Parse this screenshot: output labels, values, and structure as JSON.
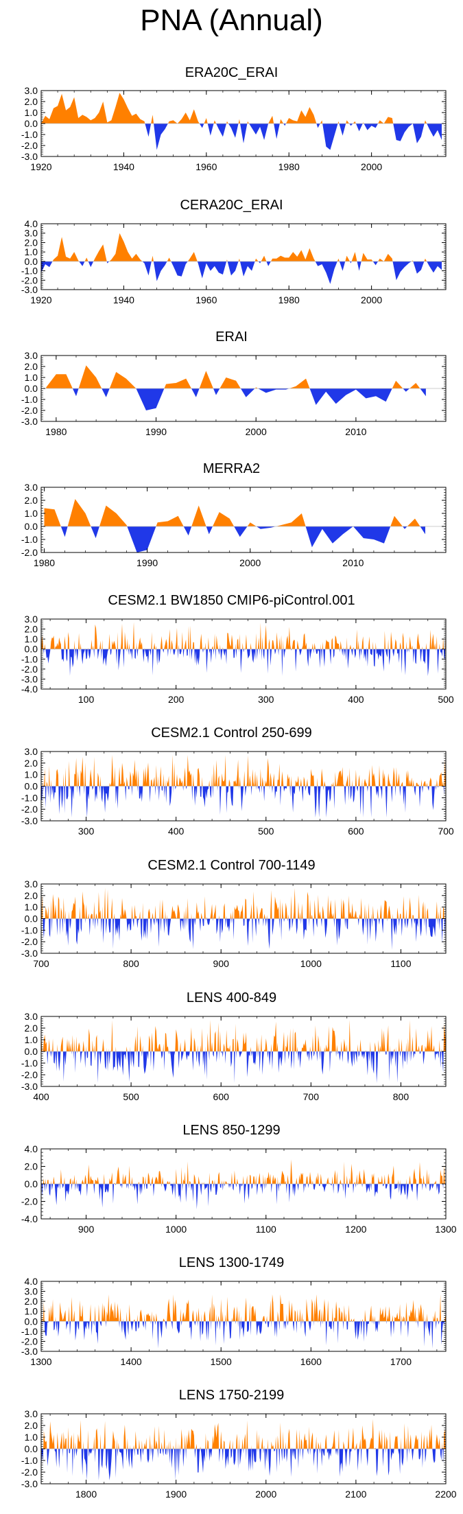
{
  "title": "PNA (Annual)",
  "colors": {
    "positive": "#ff8000",
    "negative": "#2038e8",
    "axis": "#000000"
  },
  "chart_data": [
    {
      "type": "area",
      "title": "ERA20C_ERAI",
      "xlim": [
        1920,
        2018
      ],
      "ylim": [
        -3.0,
        3.0
      ],
      "yticks": [
        "3.0",
        "2.0",
        "1.0",
        "0.0",
        "-1.0",
        "-2.0",
        "-3.0"
      ],
      "xticks": [
        "1920",
        "1940",
        "1960",
        "1980",
        "2000"
      ],
      "series_knots": [
        [
          1920,
          0.0
        ],
        [
          1921,
          0.7
        ],
        [
          1922,
          0.4
        ],
        [
          1923,
          1.4
        ],
        [
          1924,
          1.6
        ],
        [
          1925,
          2.7
        ],
        [
          1926,
          1.2
        ],
        [
          1927,
          1.5
        ],
        [
          1928,
          2.4
        ],
        [
          1929,
          0.5
        ],
        [
          1930,
          0.8
        ],
        [
          1931,
          0.6
        ],
        [
          1932,
          0.3
        ],
        [
          1933,
          0.5
        ],
        [
          1934,
          1.0
        ],
        [
          1935,
          2.0
        ],
        [
          1936,
          0.1
        ],
        [
          1937,
          0.3
        ],
        [
          1938,
          1.5
        ],
        [
          1939,
          2.8
        ],
        [
          1940,
          2.2
        ],
        [
          1941,
          1.4
        ],
        [
          1942,
          0.7
        ],
        [
          1943,
          0.9
        ],
        [
          1944,
          0.4
        ],
        [
          1945,
          0.2
        ],
        [
          1946,
          -1.2
        ],
        [
          1947,
          0.8
        ],
        [
          1948,
          -2.4
        ],
        [
          1949,
          -1.0
        ],
        [
          1950,
          -0.5
        ],
        [
          1951,
          0.2
        ],
        [
          1952,
          0.3
        ],
        [
          1953,
          0.0
        ],
        [
          1954,
          0.4
        ],
        [
          1955,
          1.0
        ],
        [
          1956,
          0.3
        ],
        [
          1957,
          1.3
        ],
        [
          1958,
          0.2
        ],
        [
          1959,
          -0.4
        ],
        [
          1960,
          0.5
        ],
        [
          1961,
          -1.1
        ],
        [
          1962,
          0.3
        ],
        [
          1963,
          -0.5
        ],
        [
          1964,
          -1.2
        ],
        [
          1965,
          0.2
        ],
        [
          1966,
          -0.4
        ],
        [
          1967,
          -1.3
        ],
        [
          1968,
          0.4
        ],
        [
          1969,
          -1.8
        ],
        [
          1970,
          0.2
        ],
        [
          1971,
          -0.4
        ],
        [
          1972,
          -1.0
        ],
        [
          1973,
          -0.3
        ],
        [
          1974,
          -1.5
        ],
        [
          1975,
          0.0
        ],
        [
          1976,
          0.7
        ],
        [
          1977,
          -1.4
        ],
        [
          1978,
          0.4
        ],
        [
          1979,
          -0.2
        ],
        [
          1980,
          0.5
        ],
        [
          1981,
          0.3
        ],
        [
          1982,
          0.2
        ],
        [
          1983,
          1.2
        ],
        [
          1984,
          0.6
        ],
        [
          1985,
          1.5
        ],
        [
          1986,
          0.8
        ],
        [
          1987,
          -0.4
        ],
        [
          1988,
          0.3
        ],
        [
          1989,
          -2.1
        ],
        [
          1990,
          -2.4
        ],
        [
          1991,
          -1.1
        ],
        [
          1992,
          0.2
        ],
        [
          1993,
          -1.1
        ],
        [
          1994,
          0.3
        ],
        [
          1995,
          -0.2
        ],
        [
          1996,
          0.2
        ],
        [
          1997,
          -0.7
        ],
        [
          1998,
          0.1
        ],
        [
          1999,
          -0.6
        ],
        [
          2000,
          -0.2
        ],
        [
          2001,
          -0.4
        ],
        [
          2002,
          0.3
        ],
        [
          2003,
          0.0
        ],
        [
          2004,
          0.6
        ],
        [
          2005,
          0.5
        ],
        [
          2006,
          -1.5
        ],
        [
          2007,
          -1.6
        ],
        [
          2008,
          -0.8
        ],
        [
          2009,
          -0.3
        ],
        [
          2010,
          0.0
        ],
        [
          2011,
          -1.8
        ],
        [
          2012,
          -1.2
        ],
        [
          2013,
          0.3
        ],
        [
          2014,
          -0.5
        ],
        [
          2015,
          -1.2
        ],
        [
          2016,
          -0.6
        ],
        [
          2017,
          -1.5
        ]
      ]
    },
    {
      "type": "area",
      "title": "CERA20C_ERAI",
      "xlim": [
        1920,
        2018
      ],
      "ylim": [
        -3.0,
        4.0
      ],
      "yticks": [
        "4.0",
        "3.0",
        "2.0",
        "1.0",
        "0.0",
        "-1.0",
        "-2.0",
        "-3.0"
      ],
      "xticks": [
        "1920",
        "1940",
        "1960",
        "1980",
        "2000"
      ],
      "series_knots": [
        [
          1920,
          -1.2
        ],
        [
          1921,
          -0.3
        ],
        [
          1922,
          -0.6
        ],
        [
          1923,
          0.2
        ],
        [
          1924,
          0.6
        ],
        [
          1925,
          2.6
        ],
        [
          1926,
          0.5
        ],
        [
          1927,
          0.3
        ],
        [
          1928,
          1.0
        ],
        [
          1929,
          0.1
        ],
        [
          1930,
          -0.5
        ],
        [
          1931,
          0.4
        ],
        [
          1932,
          -0.6
        ],
        [
          1933,
          0.3
        ],
        [
          1934,
          1.1
        ],
        [
          1935,
          1.8
        ],
        [
          1936,
          -0.2
        ],
        [
          1937,
          0.2
        ],
        [
          1938,
          0.8
        ],
        [
          1939,
          3.0
        ],
        [
          1940,
          2.1
        ],
        [
          1941,
          1.0
        ],
        [
          1942,
          0.3
        ],
        [
          1943,
          0.8
        ],
        [
          1944,
          0.2
        ],
        [
          1945,
          -0.2
        ],
        [
          1946,
          -1.5
        ],
        [
          1947,
          0.6
        ],
        [
          1948,
          -2.1
        ],
        [
          1949,
          -1.0
        ],
        [
          1950,
          -0.4
        ],
        [
          1951,
          0.4
        ],
        [
          1952,
          -0.5
        ],
        [
          1953,
          -1.5
        ],
        [
          1954,
          -1.6
        ],
        [
          1955,
          -0.3
        ],
        [
          1956,
          0.3
        ],
        [
          1957,
          1.0
        ],
        [
          1958,
          -0.2
        ],
        [
          1959,
          -1.8
        ],
        [
          1960,
          -0.2
        ],
        [
          1961,
          -1.0
        ],
        [
          1962,
          -0.5
        ],
        [
          1963,
          -1.2
        ],
        [
          1964,
          -1.4
        ],
        [
          1965,
          0.2
        ],
        [
          1966,
          -1.5
        ],
        [
          1967,
          -1.0
        ],
        [
          1968,
          0.3
        ],
        [
          1969,
          -1.6
        ],
        [
          1970,
          -0.5
        ],
        [
          1971,
          -1.0
        ],
        [
          1972,
          0.3
        ],
        [
          1973,
          -0.2
        ],
        [
          1974,
          0.6
        ],
        [
          1975,
          -0.5
        ],
        [
          1976,
          0.3
        ],
        [
          1977,
          0.3
        ],
        [
          1978,
          0.6
        ],
        [
          1979,
          0.4
        ],
        [
          1980,
          0.4
        ],
        [
          1981,
          1.0
        ],
        [
          1982,
          0.5
        ],
        [
          1983,
          1.2
        ],
        [
          1984,
          0.2
        ],
        [
          1985,
          1.4
        ],
        [
          1986,
          0.3
        ],
        [
          1987,
          -0.5
        ],
        [
          1988,
          -0.3
        ],
        [
          1989,
          -1.2
        ],
        [
          1990,
          -2.4
        ],
        [
          1991,
          -0.8
        ],
        [
          1992,
          0.3
        ],
        [
          1993,
          -1.0
        ],
        [
          1994,
          0.6
        ],
        [
          1995,
          -0.2
        ],
        [
          1996,
          1.0
        ],
        [
          1997,
          -1.0
        ],
        [
          1998,
          0.9
        ],
        [
          1999,
          0.2
        ],
        [
          2000,
          0.2
        ],
        [
          2001,
          -0.4
        ],
        [
          2002,
          0.3
        ],
        [
          2003,
          0.0
        ],
        [
          2004,
          0.8
        ],
        [
          2005,
          0.3
        ],
        [
          2006,
          -2.0
        ],
        [
          2007,
          -1.1
        ],
        [
          2008,
          -0.6
        ],
        [
          2009,
          -0.2
        ],
        [
          2010,
          0.1
        ],
        [
          2011,
          -1.3
        ],
        [
          2012,
          -0.9
        ],
        [
          2013,
          0.3
        ],
        [
          2014,
          -0.5
        ],
        [
          2015,
          -1.2
        ],
        [
          2016,
          -0.5
        ],
        [
          2017,
          -0.9
        ]
      ]
    },
    {
      "type": "area",
      "title": "ERAI",
      "xlim": [
        1978.5,
        2019
      ],
      "ylim": [
        -3.0,
        3.0
      ],
      "yticks": [
        "3.0",
        "2.0",
        "1.0",
        "0.0",
        "-1.0",
        "-2.0",
        "-3.0"
      ],
      "xticks": [
        "1980",
        "1990",
        "2000",
        "2010"
      ],
      "series_knots": [
        [
          1979,
          0.1
        ],
        [
          1980,
          1.3
        ],
        [
          1981,
          1.3
        ],
        [
          1982,
          -0.7
        ],
        [
          1983,
          2.1
        ],
        [
          1984,
          1.0
        ],
        [
          1985,
          -0.8
        ],
        [
          1986,
          1.5
        ],
        [
          1987,
          0.9
        ],
        [
          1988,
          0.0
        ],
        [
          1989,
          -2.0
        ],
        [
          1990,
          -1.8
        ],
        [
          1991,
          0.4
        ],
        [
          1992,
          0.5
        ],
        [
          1993,
          0.9
        ],
        [
          1994,
          -0.8
        ],
        [
          1995,
          1.6
        ],
        [
          1996,
          -0.6
        ],
        [
          1997,
          1.0
        ],
        [
          1998,
          0.7
        ],
        [
          1999,
          -0.8
        ],
        [
          2000,
          0.1
        ],
        [
          2001,
          -0.4
        ],
        [
          2002,
          -0.1
        ],
        [
          2003,
          -0.1
        ],
        [
          2004,
          0.2
        ],
        [
          2005,
          0.9
        ],
        [
          2006,
          -1.5
        ],
        [
          2007,
          -0.3
        ],
        [
          2008,
          -1.4
        ],
        [
          2009,
          -0.6
        ],
        [
          2010,
          -0.1
        ],
        [
          2011,
          -0.9
        ],
        [
          2012,
          -0.7
        ],
        [
          2013,
          -1.2
        ],
        [
          2014,
          0.7
        ],
        [
          2015,
          -0.3
        ],
        [
          2016,
          0.5
        ],
        [
          2017,
          -0.7
        ]
      ]
    },
    {
      "type": "area",
      "title": "MERRA2",
      "xlim": [
        1979.7,
        2019
      ],
      "ylim": [
        -2.0,
        3.0
      ],
      "yticks": [
        "3.0",
        "2.0",
        "1.0",
        "0.0",
        "-1.0",
        "-2.0"
      ],
      "xticks": [
        "1980",
        "1990",
        "2000",
        "2010"
      ],
      "series_knots": [
        [
          1980,
          1.4
        ],
        [
          1981,
          1.3
        ],
        [
          1982,
          -0.8
        ],
        [
          1983,
          2.1
        ],
        [
          1984,
          1.0
        ],
        [
          1985,
          -0.9
        ],
        [
          1986,
          1.6
        ],
        [
          1987,
          1.0
        ],
        [
          1988,
          0.1
        ],
        [
          1989,
          -2.0
        ],
        [
          1990,
          -1.8
        ],
        [
          1991,
          0.3
        ],
        [
          1992,
          0.4
        ],
        [
          1993,
          0.8
        ],
        [
          1994,
          -0.7
        ],
        [
          1995,
          1.6
        ],
        [
          1996,
          -0.6
        ],
        [
          1997,
          1.1
        ],
        [
          1998,
          0.6
        ],
        [
          1999,
          -0.8
        ],
        [
          2000,
          0.3
        ],
        [
          2001,
          -0.2
        ],
        [
          2002,
          -0.1
        ],
        [
          2003,
          0.1
        ],
        [
          2004,
          0.3
        ],
        [
          2005,
          1.0
        ],
        [
          2006,
          -1.6
        ],
        [
          2007,
          -0.2
        ],
        [
          2008,
          -1.3
        ],
        [
          2009,
          -0.6
        ],
        [
          2010,
          0.0
        ],
        [
          2011,
          -0.9
        ],
        [
          2012,
          -1.0
        ],
        [
          2013,
          -1.3
        ],
        [
          2014,
          0.8
        ],
        [
          2015,
          -0.2
        ],
        [
          2016,
          0.6
        ],
        [
          2017,
          -0.6
        ]
      ]
    },
    {
      "type": "area",
      "title": "CESM2.1 BW1850 CMIP6-piControl.001",
      "xlim": [
        50,
        500
      ],
      "ylim": [
        -4.0,
        3.0
      ],
      "yticks": [
        "3.0",
        "2.0",
        "1.0",
        "0.0",
        "-1.0",
        "-2.0",
        "-3.0",
        "-4.0"
      ],
      "xticks": [
        "100",
        "200",
        "300",
        "400",
        "500"
      ],
      "amplitude": 1.25,
      "seed": 11
    },
    {
      "type": "area",
      "title": "CESM2.1 Control 250-699",
      "xlim": [
        250,
        700
      ],
      "ylim": [
        -3.0,
        3.0
      ],
      "yticks": [
        "3.0",
        "2.0",
        "1.0",
        "0.0",
        "-1.0",
        "-2.0",
        "-3.0"
      ],
      "xticks": [
        "300",
        "400",
        "500",
        "600",
        "700"
      ],
      "amplitude": 1.3,
      "seed": 23
    },
    {
      "type": "area",
      "title": "CESM2.1 Control 700-1149",
      "xlim": [
        700,
        1150
      ],
      "ylim": [
        -3.0,
        3.0
      ],
      "yticks": [
        "3.0",
        "2.0",
        "1.0",
        "0.0",
        "-1.0",
        "-2.0",
        "-3.0"
      ],
      "xticks": [
        "700",
        "800",
        "900",
        "1000",
        "1100"
      ],
      "amplitude": 1.3,
      "seed": 37
    },
    {
      "type": "area",
      "title": "LENS 400-849",
      "xlim": [
        400,
        850
      ],
      "ylim": [
        -3.0,
        3.0
      ],
      "yticks": [
        "3.0",
        "2.0",
        "1.0",
        "0.0",
        "-1.0",
        "-2.0",
        "-3.0"
      ],
      "xticks": [
        "400",
        "500",
        "600",
        "700",
        "800"
      ],
      "amplitude": 1.3,
      "seed": 41
    },
    {
      "type": "area",
      "title": "LENS 850-1299",
      "xlim": [
        850,
        1300
      ],
      "ylim": [
        -4.0,
        4.0
      ],
      "yticks": [
        "4.0",
        "2.0",
        "0.0",
        "-2.0",
        "-4.0"
      ],
      "xticks": [
        "900",
        "1000",
        "1100",
        "1200",
        "1300"
      ],
      "amplitude": 1.2,
      "seed": 53
    },
    {
      "type": "area",
      "title": "LENS 1300-1749",
      "xlim": [
        1300,
        1750
      ],
      "ylim": [
        -3.0,
        4.0
      ],
      "yticks": [
        "4.0",
        "3.0",
        "2.0",
        "1.0",
        "0.0",
        "-1.0",
        "-2.0",
        "-3.0"
      ],
      "xticks": [
        "1300",
        "1400",
        "1500",
        "1600",
        "1700"
      ],
      "amplitude": 1.3,
      "seed": 67
    },
    {
      "type": "area",
      "title": "LENS 1750-2199",
      "xlim": [
        1750,
        2200
      ],
      "ylim": [
        -3.0,
        3.0
      ],
      "yticks": [
        "3.0",
        "2.0",
        "1.0",
        "0.0",
        "-1.0",
        "-2.0",
        "-3.0"
      ],
      "xticks": [
        "1800",
        "1900",
        "2000",
        "2100",
        "2200"
      ],
      "amplitude": 1.35,
      "seed": 79
    }
  ]
}
